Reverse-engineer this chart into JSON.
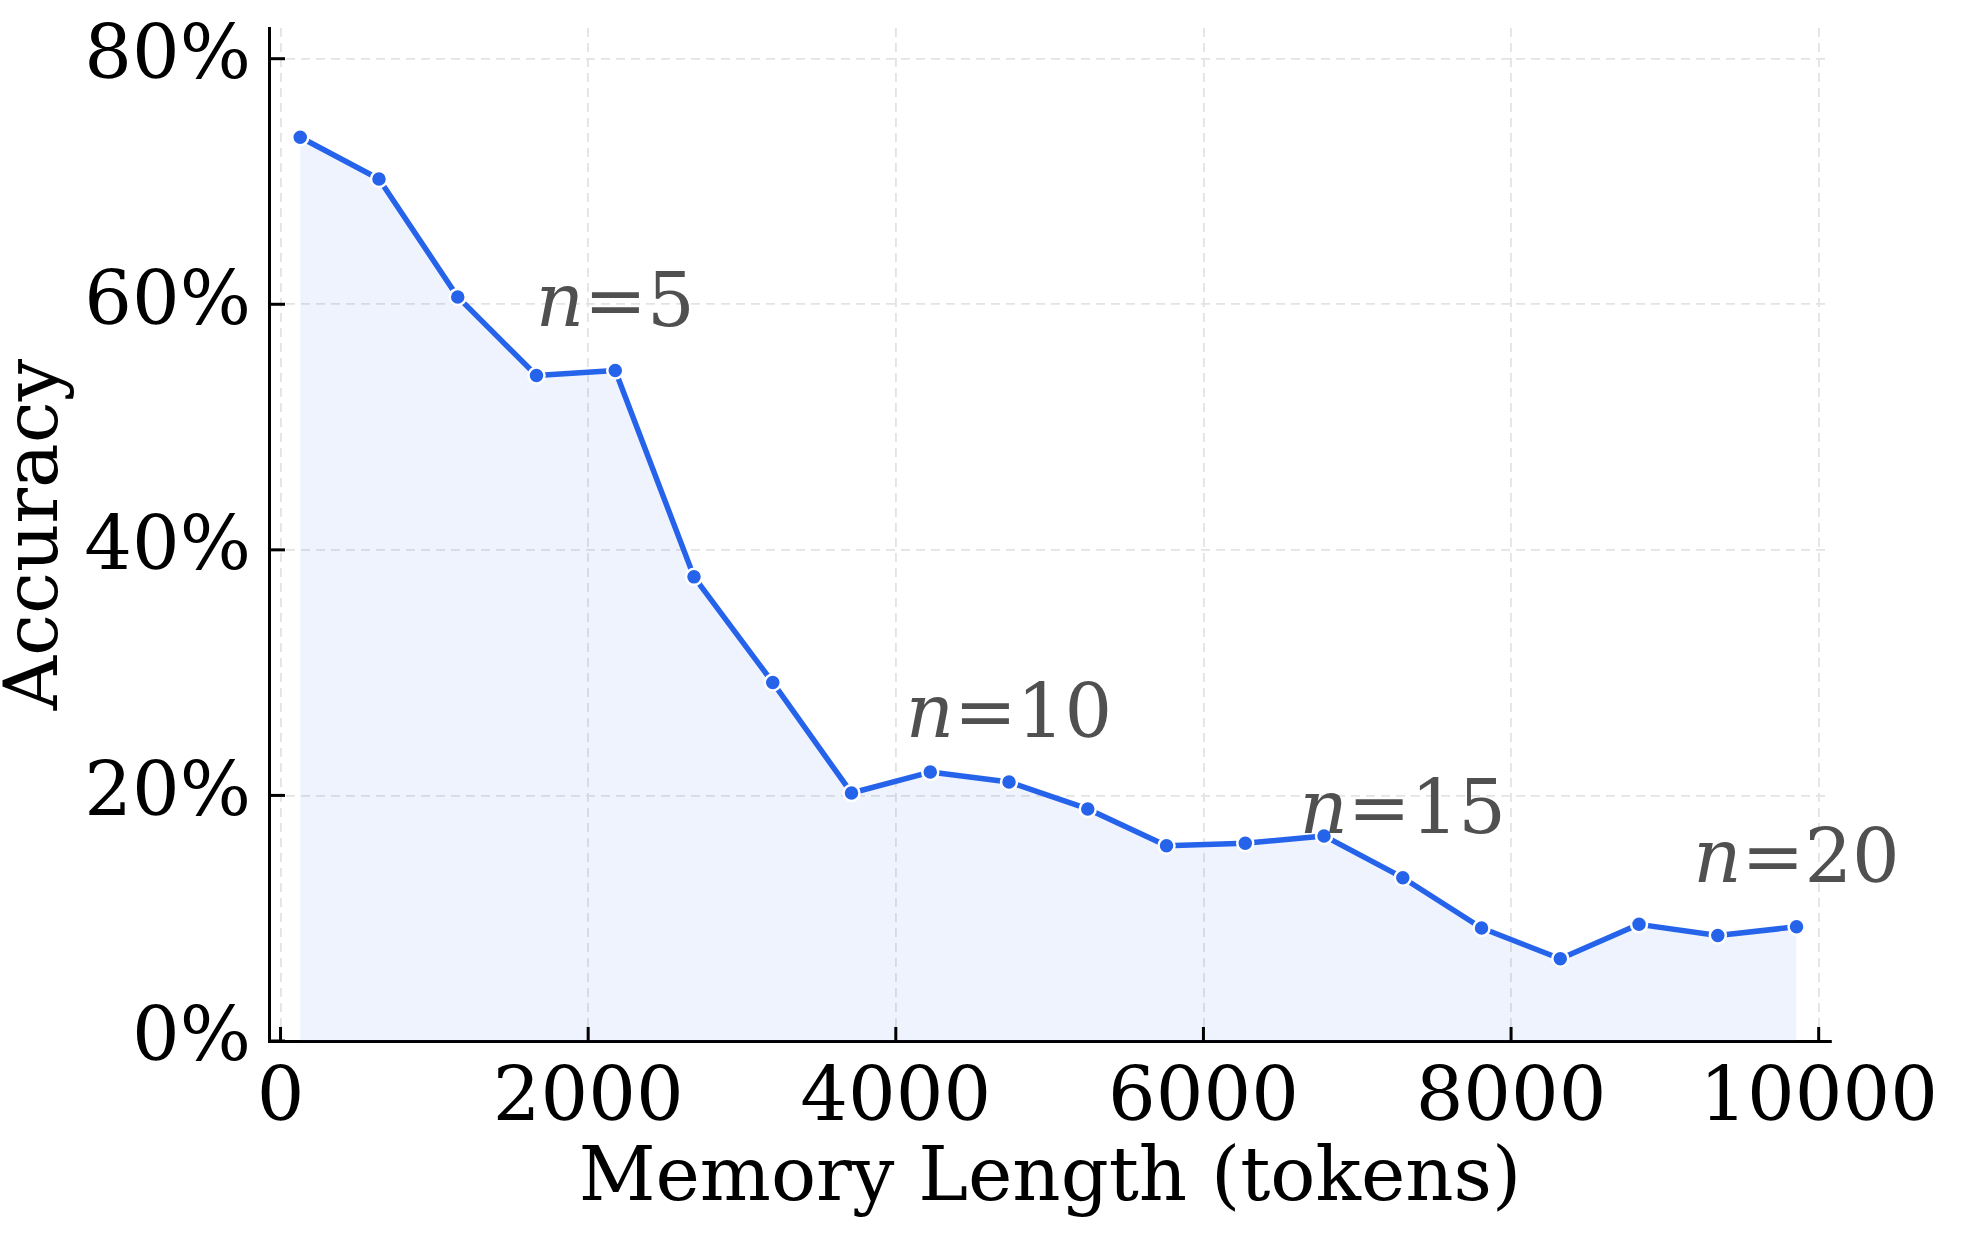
{
  "chart_data": {
    "type": "area",
    "xlabel": "Memory Length (tokens)",
    "ylabel": "Accuracy",
    "x": [
      128,
      640,
      1152,
      1664,
      2176,
      2688,
      3200,
      3712,
      4224,
      4736,
      5248,
      5760,
      6272,
      6784,
      7296,
      7808,
      8320,
      8832,
      9344,
      9856
    ],
    "series": [
      {
        "color": "#2563eb",
        "values": [
          73.6,
          70.2,
          60.6,
          54.2,
          54.6,
          37.8,
          29.2,
          20.2,
          21.9,
          21.1,
          18.9,
          15.9,
          16.1,
          16.7,
          13.3,
          9.2,
          6.7,
          9.5,
          8.6,
          9.3
        ]
      }
    ],
    "xlim": [
      -75,
      10080
    ],
    "xticks": [
      0,
      2000,
      4000,
      6000,
      8000,
      10000
    ],
    "ylim": [
      0,
      82.5
    ],
    "yticks": [
      {
        "value": 0,
        "label": "0%"
      },
      {
        "value": 20,
        "label": "20%"
      },
      {
        "value": 40,
        "label": "40%"
      },
      {
        "value": 60,
        "label": "60%"
      },
      {
        "value": 80,
        "label": "80%"
      }
    ],
    "grid": true,
    "marker": "circle",
    "annotations": [
      {
        "text": "n=5",
        "x": 2176,
        "y": 54.6
      },
      {
        "text": "n=10",
        "x": 4736,
        "y": 21.1
      },
      {
        "text": "n=15",
        "x": 7296,
        "y": 13.3
      },
      {
        "text": "n=20",
        "x": 9856,
        "y": 9.3
      }
    ]
  }
}
